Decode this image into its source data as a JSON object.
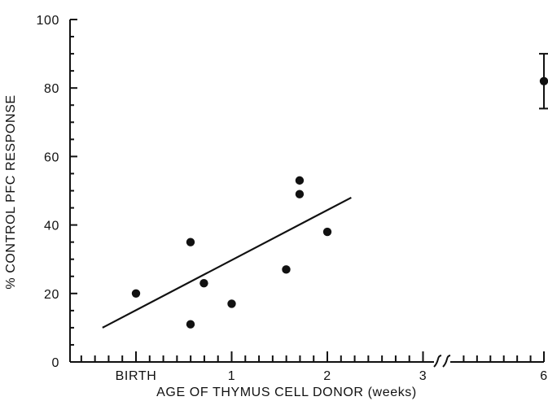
{
  "chart_data": {
    "type": "scatter",
    "xlabel": "AGE OF THYMUS CELL DONOR (weeks)",
    "ylabel": "% CONTROL PFC RESPONSE",
    "xlim": [
      -0.65,
      6
    ],
    "ylim": [
      0,
      100
    ],
    "axis_break_after": 3,
    "x_ticks": [
      {
        "value": 0,
        "label": "BIRTH"
      },
      {
        "value": 1,
        "label": "1"
      },
      {
        "value": 2,
        "label": "2"
      },
      {
        "value": 3,
        "label": "3"
      },
      {
        "value": 6,
        "label": "6"
      }
    ],
    "y_ticks": [
      {
        "value": 0,
        "label": "0"
      },
      {
        "value": 20,
        "label": "20"
      },
      {
        "value": 40,
        "label": "40"
      },
      {
        "value": 60,
        "label": "60"
      },
      {
        "value": 80,
        "label": "80"
      },
      {
        "value": 100,
        "label": "100"
      }
    ],
    "points": [
      {
        "x": 0.0,
        "y": 20
      },
      {
        "x": 0.57,
        "y": 35
      },
      {
        "x": 0.57,
        "y": 11
      },
      {
        "x": 0.71,
        "y": 23
      },
      {
        "x": 1.0,
        "y": 17
      },
      {
        "x": 1.57,
        "y": 27
      },
      {
        "x": 1.71,
        "y": 53
      },
      {
        "x": 1.71,
        "y": 49
      },
      {
        "x": 2.0,
        "y": 38
      },
      {
        "x": 6.0,
        "y": 82,
        "error": [
          74,
          90
        ]
      }
    ],
    "regression_line": {
      "x": [
        -0.35,
        2.25
      ],
      "y": [
        10,
        48
      ]
    },
    "grid": false,
    "legend": "none"
  }
}
